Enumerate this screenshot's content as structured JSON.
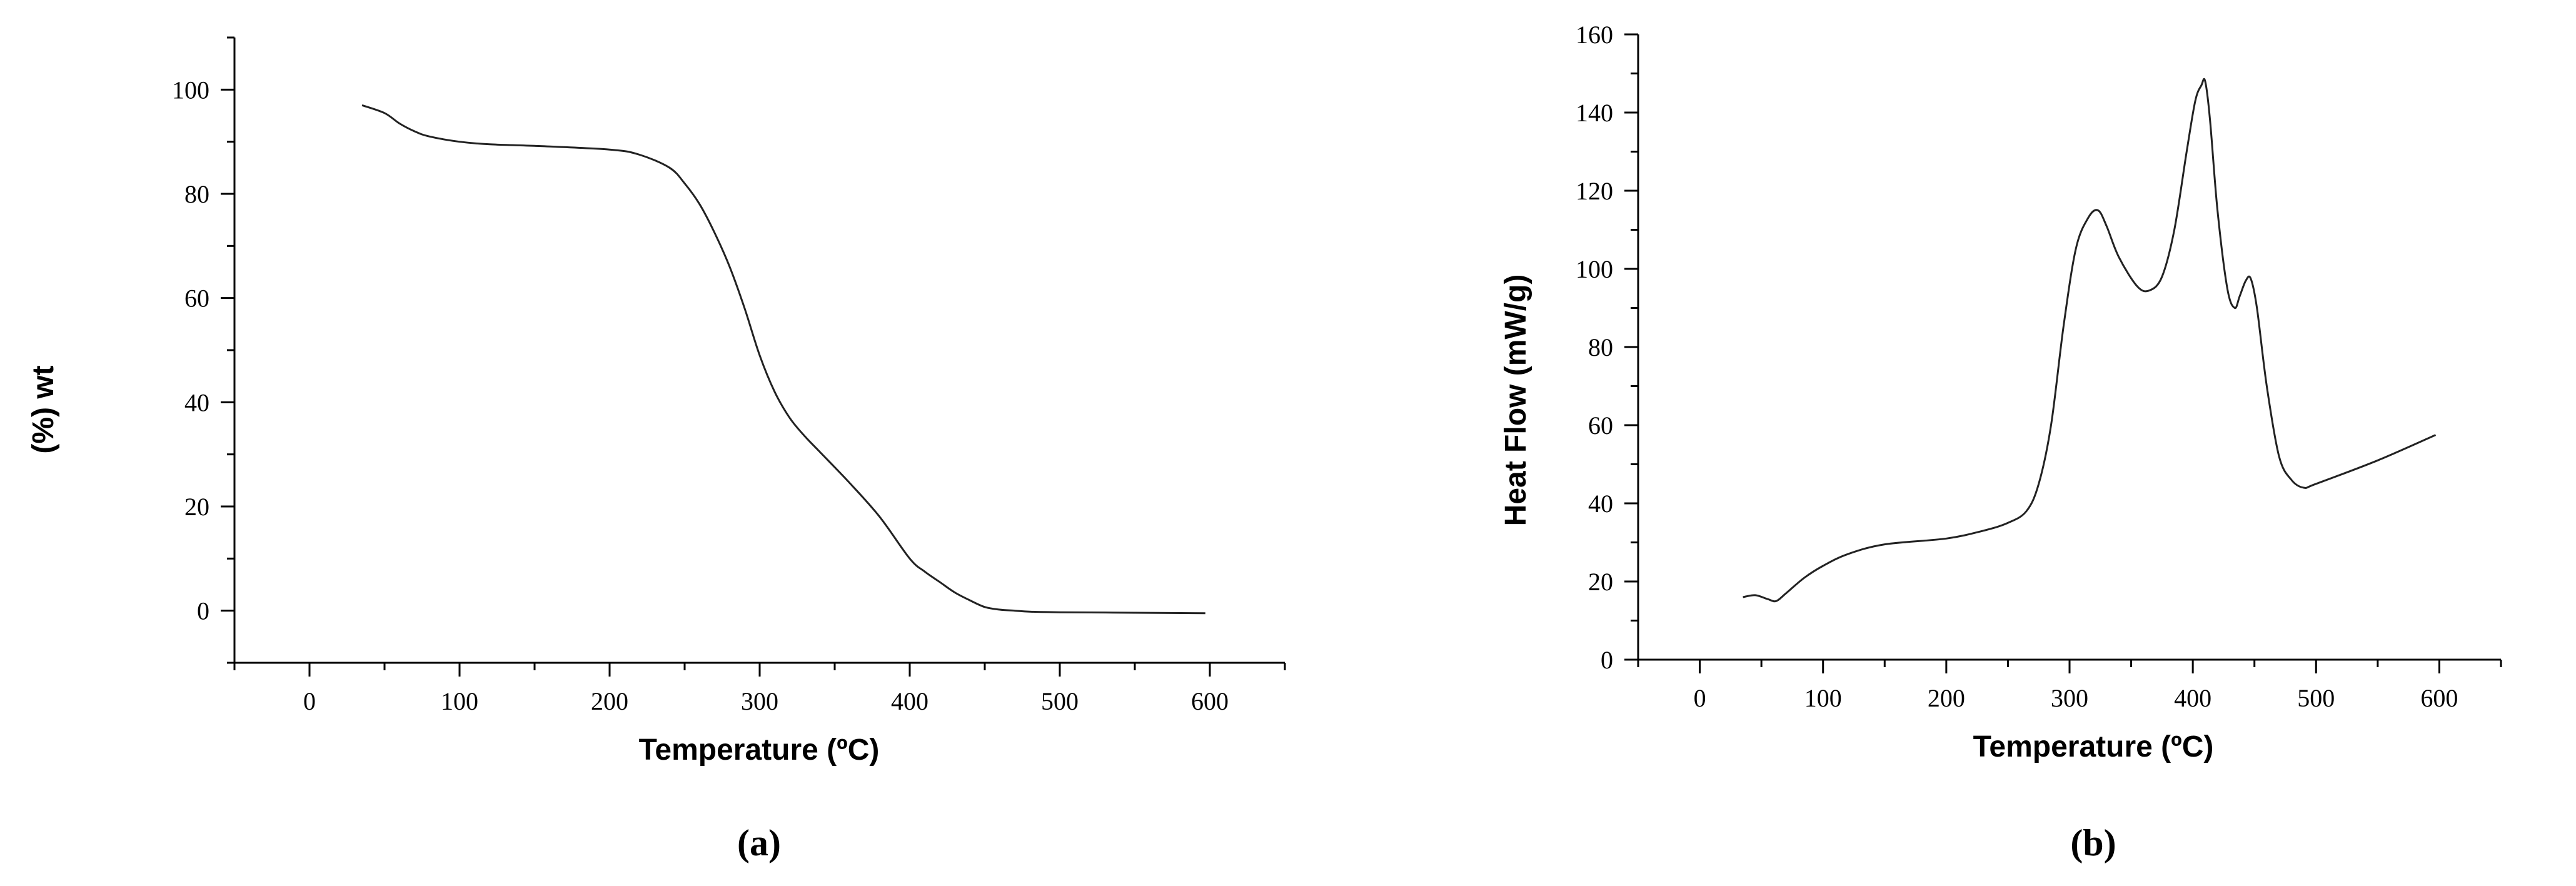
{
  "chart_data": [
    {
      "type": "line",
      "panel_label": "(a)",
      "title": "",
      "xlabel": "Temperature (ºC)",
      "ylabel": "(%) wt",
      "xlim": [
        -50,
        650
      ],
      "ylim": [
        -10,
        110
      ],
      "x_ticks": [
        0,
        100,
        200,
        300,
        400,
        500,
        600
      ],
      "y_ticks": [
        0,
        20,
        40,
        60,
        80,
        100
      ],
      "grid": false,
      "series": [
        {
          "x": [
            35,
            50,
            60,
            70,
            80,
            100,
            120,
            150,
            200,
            220,
            240,
            250,
            260,
            270,
            280,
            290,
            300,
            310,
            320,
            330,
            340,
            360,
            380,
            400,
            410,
            420,
            430,
            440,
            450,
            460,
            470,
            480,
            500,
            550,
            597
          ],
          "y": [
            97,
            95.5,
            93.5,
            92,
            91,
            90,
            89.5,
            89.2,
            88.5,
            87.5,
            85,
            82,
            78,
            72.5,
            66,
            58,
            49,
            42,
            37,
            33.5,
            30.5,
            24.5,
            18,
            10,
            7.5,
            5.5,
            3.5,
            2,
            0.7,
            0.2,
            0,
            -0.2,
            -0.3,
            -0.4,
            -0.5
          ]
        }
      ]
    },
    {
      "type": "line",
      "panel_label": "(b)",
      "title": "",
      "xlabel": "Temperature (ºC)",
      "ylabel": "Heat Flow (mW/g)",
      "xlim": [
        -50,
        650
      ],
      "ylim": [
        0,
        160
      ],
      "x_ticks": [
        0,
        100,
        200,
        300,
        400,
        500,
        600
      ],
      "y_ticks": [
        0,
        20,
        40,
        60,
        80,
        100,
        120,
        140,
        160
      ],
      "grid": false,
      "series": [
        {
          "x": [
            35,
            45,
            55,
            62,
            70,
            85,
            100,
            120,
            150,
            200,
            230,
            250,
            265,
            275,
            285,
            295,
            305,
            315,
            323,
            330,
            340,
            355,
            365,
            375,
            385,
            395,
            402,
            407,
            410,
            414,
            420,
            428,
            434,
            438,
            443,
            447,
            452,
            460,
            470,
            480,
            490,
            500,
            550,
            597
          ],
          "y": [
            16,
            16.5,
            15.5,
            15,
            17,
            21,
            24,
            27,
            29.5,
            31,
            33,
            35,
            38,
            45,
            60,
            85,
            105,
            113,
            115,
            111,
            103,
            95.5,
            94.5,
            98,
            110,
            130,
            143,
            147,
            148,
            138,
            115,
            95,
            90,
            93,
            97,
            97.5,
            90,
            70,
            52,
            46,
            44,
            45,
            51,
            57.5
          ]
        }
      ]
    }
  ]
}
